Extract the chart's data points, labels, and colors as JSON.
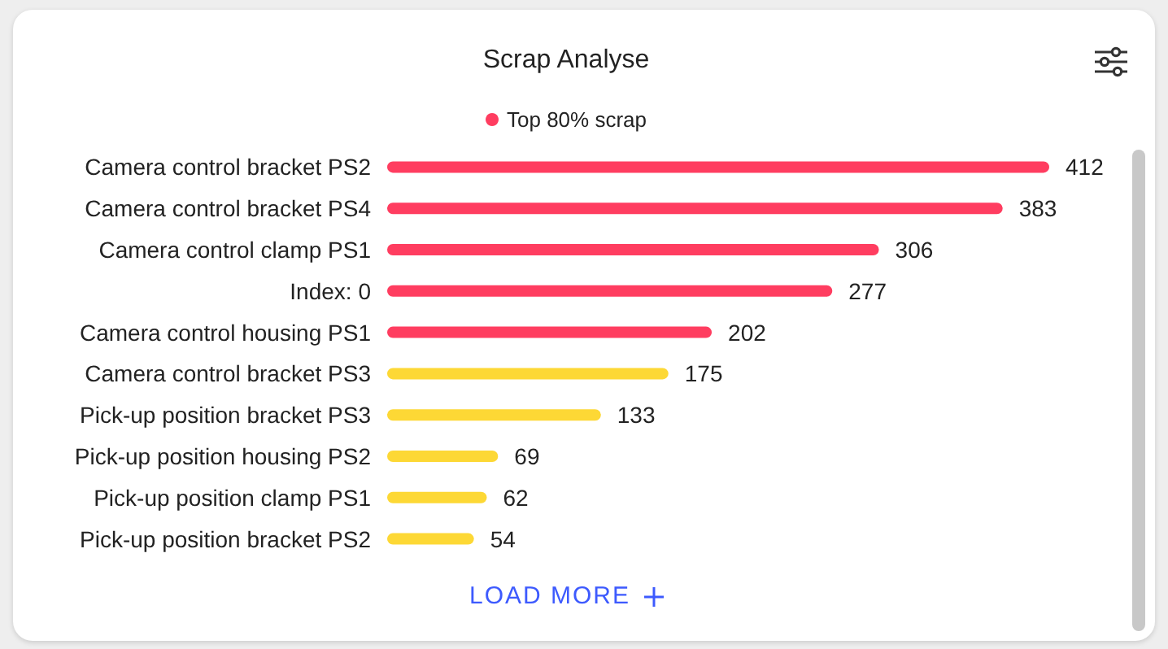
{
  "chart_data": {
    "type": "bar",
    "orientation": "horizontal",
    "tick_labels": "y",
    "title": "Scrap Analyse",
    "categories": [
      "Camera control bracket PS2",
      "Camera control bracket PS4",
      "Camera control clamp PS1",
      "Index: 0",
      "Camera control housing PS1",
      "Camera control bracket PS3",
      "Pick-up position bracket PS3",
      "Pick-up position housing PS2",
      "Pick-up position clamp PS1",
      "Pick-up position bracket PS2"
    ],
    "series": [
      {
        "name": "Top 80% scrap",
        "color": "#ff3d60",
        "values": [
          412,
          383,
          306,
          277,
          202,
          null,
          null,
          null,
          null,
          null
        ]
      },
      {
        "color": "#fdd835",
        "values": [
          null,
          null,
          null,
          null,
          null,
          175,
          133,
          69,
          62,
          54
        ]
      }
    ],
    "data_labels": true,
    "legend": "top",
    "annotations": [
      "LOAD MORE"
    ]
  }
}
